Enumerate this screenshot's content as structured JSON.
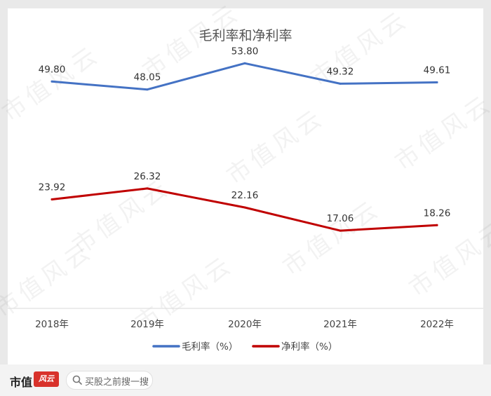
{
  "chart_data": {
    "type": "line",
    "title": "毛利率和净利率",
    "categories": [
      "2018年",
      "2019年",
      "2020年",
      "2021年",
      "2022年"
    ],
    "series": [
      {
        "name": "毛利率（%）",
        "color": "#4472c4",
        "values": [
          49.8,
          48.05,
          53.8,
          49.32,
          49.61
        ],
        "labels": [
          "49.80",
          "48.05",
          "53.80",
          "49.32",
          "49.61"
        ]
      },
      {
        "name": "净利率（%）",
        "color": "#c00000",
        "values": [
          23.92,
          26.32,
          22.16,
          17.06,
          18.26
        ],
        "labels": [
          "23.92",
          "26.32",
          "22.16",
          "17.06",
          "18.26"
        ]
      }
    ],
    "ylim": [
      0,
      60
    ],
    "grid": false,
    "legend": "bottom"
  },
  "watermark": "市值风云",
  "footer": {
    "brand": "市值",
    "logo_text": "风云",
    "search_placeholder": "买股之前搜一搜"
  }
}
